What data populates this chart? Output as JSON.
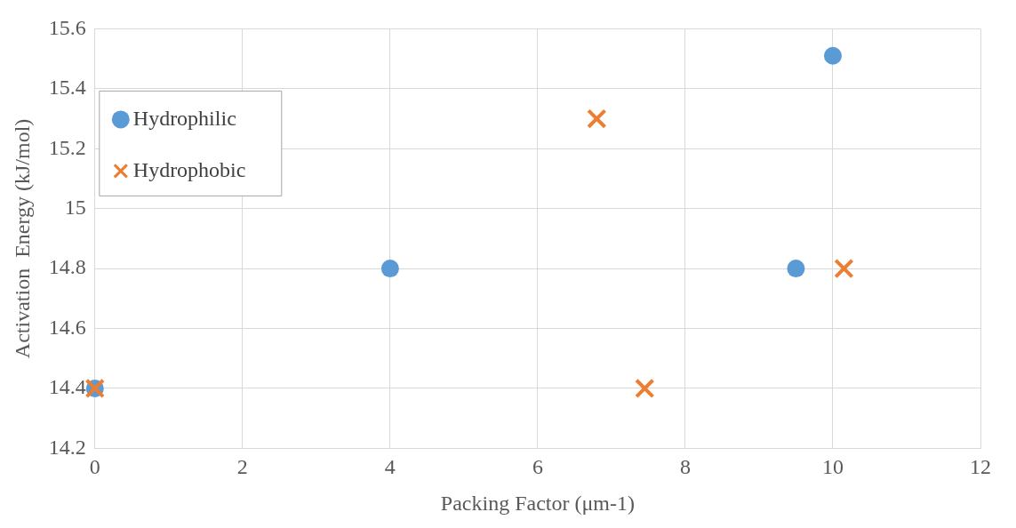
{
  "chart_data": {
    "type": "scatter",
    "xlabel": "Packing Factor (μm-1)",
    "ylabel": "Activation  Energy (kJ/mol)",
    "xlim": [
      0,
      12
    ],
    "xticks": [
      0,
      2,
      4,
      6,
      8,
      10,
      12
    ],
    "ylim": [
      14.2,
      15.6
    ],
    "yticks": [
      14.2,
      14.4,
      14.6,
      14.8,
      {
        "value": 15,
        "label": "15"
      },
      15.2,
      15.4,
      15.6
    ],
    "grid": true,
    "legend": "top left",
    "series": [
      {
        "name": "Hydrophilic",
        "color": "#5b9bd5",
        "marker": "circle",
        "x": [
          0,
          4,
          9.5,
          10
        ],
        "values": [
          14.4,
          14.8,
          14.8,
          15.51
        ]
      },
      {
        "name": "Hydrophobic",
        "color": "#ed7d31",
        "marker": "cross",
        "x": [
          0,
          6.8,
          7.45,
          10.15
        ],
        "values": [
          14.4,
          15.3,
          14.4,
          14.8
        ]
      }
    ]
  }
}
